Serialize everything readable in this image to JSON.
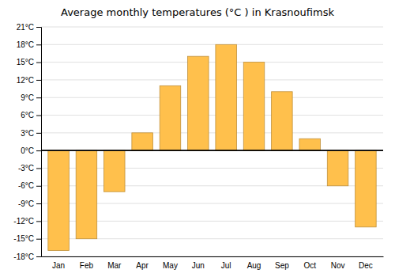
{
  "chart_data": {
    "type": "bar",
    "title": "Average monthly temperatures (°C ) in Krasnoufimsk",
    "categories": [
      "Jan",
      "Feb",
      "Mar",
      "Apr",
      "May",
      "Jun",
      "Jul",
      "Aug",
      "Sep",
      "Oct",
      "Nov",
      "Dec"
    ],
    "values": [
      -17,
      -15,
      -7,
      3,
      11,
      16,
      18,
      15,
      10,
      2,
      -6,
      -13
    ],
    "color": "#FFC04C",
    "ylim": [
      -18,
      21
    ],
    "yticks": [
      {
        "value": -18,
        "label": "-18°C"
      },
      {
        "value": -15,
        "label": "-15°C"
      },
      {
        "value": -12,
        "label": "-12°C"
      },
      {
        "value": -9,
        "label": "-9°C"
      },
      {
        "value": -6,
        "label": "-6°C"
      },
      {
        "value": -3,
        "label": "-3°C"
      },
      {
        "value": 0,
        "label": "0°C"
      },
      {
        "value": 3,
        "label": "3°C"
      },
      {
        "value": 6,
        "label": "6°C"
      },
      {
        "value": 9,
        "label": "9°C"
      },
      {
        "value": 12,
        "label": "12°C"
      },
      {
        "value": 15,
        "label": "15°C"
      },
      {
        "value": 18,
        "label": "18°C"
      },
      {
        "value": 21,
        "label": "21°C"
      }
    ],
    "grid": true
  }
}
